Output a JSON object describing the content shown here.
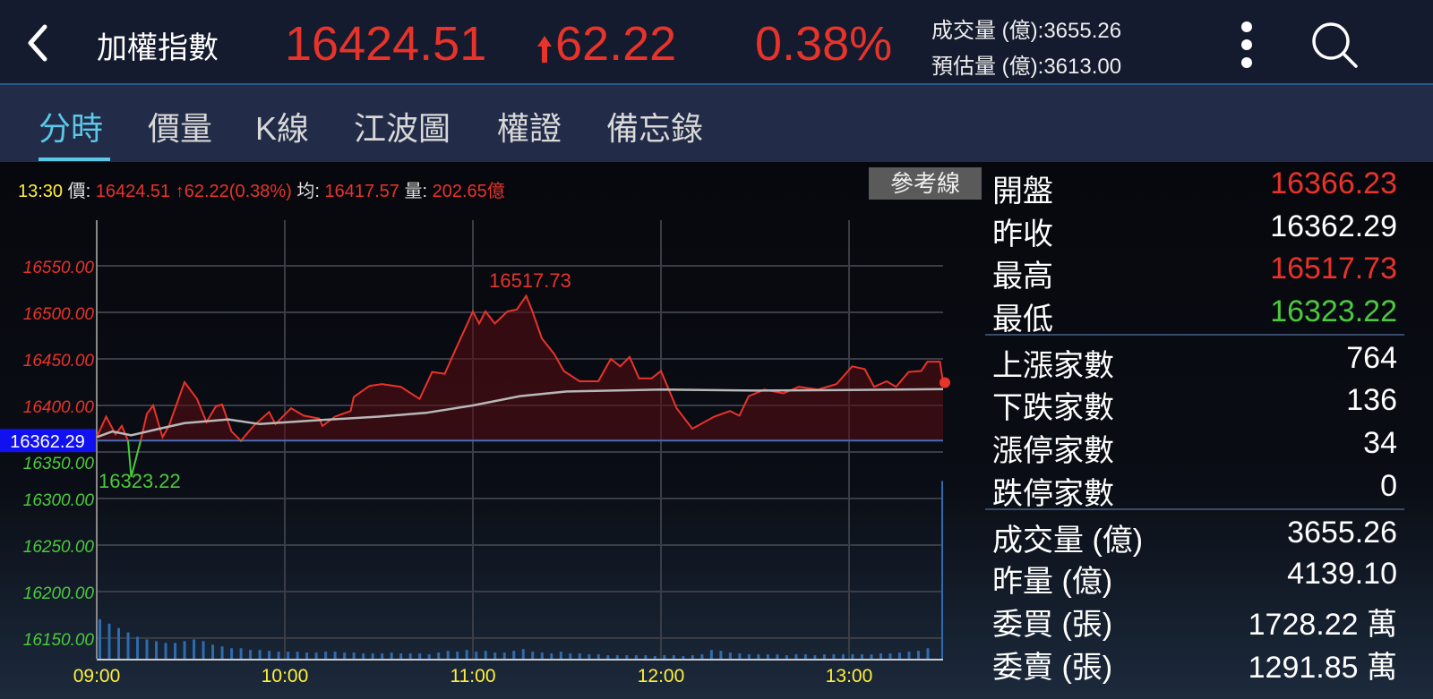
{
  "header": {
    "back_icon": "chevron-left-icon",
    "title": "加權指數",
    "price": "16424.51",
    "change_arrow": "up-arrow-icon",
    "change": "62.22",
    "change_pct": "0.38%",
    "volume_label": "成交量 (億):3655.26",
    "estimate_label": "預估量 (億):3613.00",
    "more_icon": "more-vertical-icon",
    "search_icon": "search-icon"
  },
  "tabs": [
    {
      "label": "分時",
      "active": true
    },
    {
      "label": "價量"
    },
    {
      "label": "K線"
    },
    {
      "label": "江波圖"
    },
    {
      "label": "權證"
    },
    {
      "label": "備忘錄"
    }
  ],
  "infobar": {
    "time": "13:30",
    "price_label": "價:",
    "price": "16424.51",
    "change": "62.22(0.38%)",
    "avg_label": "均:",
    "avg": "16417.57",
    "vol_label": "量:",
    "vol": "202.65億"
  },
  "ref_button": "參考線",
  "colors": {
    "up": "#e8332a",
    "down": "#4cc93c",
    "avg": "#b8b8b8",
    "volume": "#2e6bb0",
    "ref_label_bg": "#1010f0"
  },
  "chart_data": {
    "type": "line",
    "x_ticks": [
      "09:00",
      "10:00",
      "11:00",
      "12:00",
      "13:00"
    ],
    "y_ticks": [
      "16550.00",
      "16500.00",
      "16450.00",
      "16400.00",
      "16350.00",
      "16300.00",
      "16250.00",
      "16200.00",
      "16150.00"
    ],
    "ylim": [
      16150,
      16550
    ],
    "reference": 16362.29,
    "reference_label": "16362.29",
    "high_label": "16517.73",
    "low_label": "16323.22",
    "price_series": {
      "minutes": [
        0,
        3,
        6,
        8,
        10,
        11,
        14,
        16,
        18,
        21,
        23,
        28,
        32,
        35,
        38,
        40,
        43,
        46,
        50,
        55,
        57,
        62,
        66,
        71,
        72,
        76,
        81,
        82,
        87,
        91,
        97,
        103,
        107,
        111,
        115,
        120,
        122,
        124,
        127,
        131,
        134,
        137,
        139,
        142,
        146,
        149,
        154,
        160,
        164,
        167,
        170,
        173,
        177,
        180,
        185,
        190,
        197,
        202,
        205,
        208,
        213,
        219,
        224,
        230,
        236,
        241,
        245,
        248,
        252,
        255,
        259,
        263,
        265,
        269,
        270
      ],
      "values": [
        16366,
        16388,
        16369,
        16378,
        16362,
        16323.22,
        16362,
        16391,
        16400,
        16366,
        16378,
        16425,
        16407,
        16382,
        16399,
        16401,
        16372,
        16362,
        16378,
        16393,
        16380,
        16397,
        16389,
        16386,
        16378,
        16388,
        16394,
        16409,
        16421,
        16423,
        16420,
        16407,
        16436,
        16434,
        16464,
        16501,
        16488,
        16501,
        16488,
        16501,
        16503,
        16517.73,
        16501,
        16472,
        16455,
        16437,
        16426,
        16426,
        16450,
        16442,
        16452,
        16429,
        16429,
        16437,
        16397,
        16375,
        16388,
        16394,
        16389,
        16410,
        16417,
        16413,
        16420,
        16417,
        16423,
        16442,
        16439,
        16420,
        16426,
        16420,
        16436,
        16437,
        16447,
        16447,
        16424.51
      ]
    },
    "avg_series": {
      "minutes": [
        0,
        5,
        11,
        20,
        28,
        42,
        52,
        70,
        90,
        105,
        120,
        135,
        150,
        180,
        210,
        240,
        270
      ],
      "values": [
        16366,
        16372,
        16368,
        16375,
        16381,
        16385,
        16380,
        16384,
        16388,
        16392,
        16400,
        16410,
        16415,
        16417,
        16416,
        16416.5,
        16417.57
      ]
    },
    "volume": [
      45,
      40,
      35,
      30,
      25,
      22,
      20,
      18,
      18,
      20,
      22,
      20,
      16,
      14,
      12,
      12,
      10,
      10,
      9,
      8,
      8,
      8,
      7,
      7,
      8,
      8,
      7,
      7,
      6,
      6,
      6,
      7,
      6,
      6,
      6,
      5,
      7,
      9,
      8,
      10,
      8,
      9,
      7,
      7,
      9,
      11,
      8,
      7,
      6,
      8,
      6,
      6,
      5,
      5,
      4,
      4,
      4,
      4,
      4,
      3,
      4,
      4,
      3,
      4,
      5,
      10,
      9,
      7,
      6,
      5,
      5,
      5,
      5,
      4,
      5,
      5,
      4,
      5,
      5,
      5,
      5,
      5,
      5,
      6,
      6,
      7,
      8,
      9,
      12,
      202.65
    ]
  },
  "stats": [
    {
      "label": "開盤",
      "value": "16366.23",
      "color": "#e8332a"
    },
    {
      "label": "昨收",
      "value": "16362.29",
      "color": "#ffffff"
    },
    {
      "label": "最高",
      "value": "16517.73",
      "color": "#e8332a"
    },
    {
      "label": "最低",
      "value": "16323.22",
      "color": "#4cc93c"
    },
    {
      "label": "上漲家數",
      "value": "764",
      "color": "#ffffff"
    },
    {
      "label": "下跌家數",
      "value": "136",
      "color": "#ffffff"
    },
    {
      "label": "漲停家數",
      "value": "34",
      "color": "#ffffff"
    },
    {
      "label": "跌停家數",
      "value": "0",
      "color": "#ffffff"
    },
    {
      "label": "成交量 (億)",
      "value": "3655.26",
      "color": "#ffffff"
    },
    {
      "label": "昨量 (億)",
      "value": "4139.10",
      "color": "#ffffff"
    },
    {
      "label": "委買 (張)",
      "value": "1728.22 萬",
      "color": "#ffffff"
    },
    {
      "label": "委賣 (張)",
      "value": "1291.85 萬",
      "color": "#ffffff"
    }
  ]
}
